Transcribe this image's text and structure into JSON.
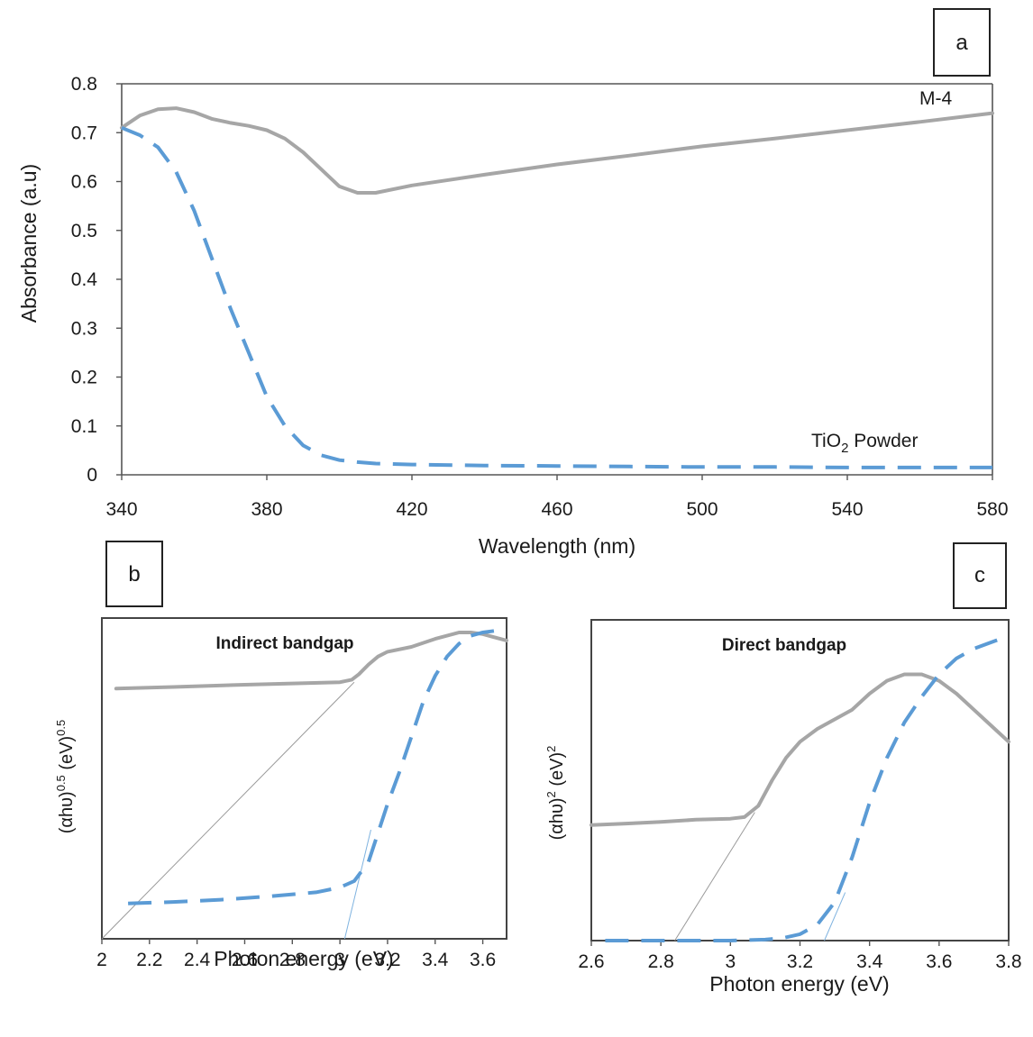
{
  "chart_data": [
    {
      "id": "a",
      "type": "line",
      "badge": "a",
      "xlabel": "Wavelength (nm)",
      "ylabel": "Absorbance (a.u)",
      "xlim": [
        340,
        580
      ],
      "ylim": [
        0,
        0.8
      ],
      "xticks": [
        "340",
        "380",
        "420",
        "460",
        "500",
        "540",
        "580"
      ],
      "yticks": [
        "0",
        "0.1",
        "0.2",
        "0.3",
        "0.4",
        "0.5",
        "0.6",
        "0.7",
        "0.8"
      ],
      "series_labels": {
        "m4": "M-4",
        "tio2_main": "TiO",
        "tio2_sub": "2",
        "tio2_rest": " Powder"
      },
      "series": [
        {
          "name": "M-4",
          "style": "solid",
          "color": "#a6a6a6",
          "x": [
            340,
            345,
            350,
            355,
            360,
            365,
            370,
            375,
            380,
            385,
            390,
            395,
            400,
            405,
            410,
            420,
            440,
            460,
            480,
            500,
            520,
            540,
            560,
            580
          ],
          "y": [
            0.71,
            0.735,
            0.748,
            0.75,
            0.742,
            0.728,
            0.72,
            0.714,
            0.705,
            0.688,
            0.66,
            0.625,
            0.59,
            0.577,
            0.577,
            0.592,
            0.614,
            0.635,
            0.653,
            0.672,
            0.688,
            0.705,
            0.722,
            0.74
          ]
        },
        {
          "name": "TiO2 Powder",
          "style": "dashed",
          "color": "#5b9bd5",
          "x": [
            340,
            345,
            350,
            355,
            360,
            365,
            370,
            375,
            380,
            385,
            390,
            395,
            400,
            405,
            410,
            420,
            440,
            460,
            480,
            500,
            520,
            540,
            560,
            580
          ],
          "y": [
            0.71,
            0.695,
            0.67,
            0.62,
            0.54,
            0.44,
            0.34,
            0.25,
            0.16,
            0.1,
            0.06,
            0.04,
            0.03,
            0.026,
            0.023,
            0.021,
            0.019,
            0.018,
            0.017,
            0.016,
            0.016,
            0.015,
            0.015,
            0.015
          ]
        }
      ]
    },
    {
      "id": "b",
      "type": "line",
      "badge": "b",
      "title": "Indirect bandgap",
      "xlabel": "Photon energy (eV)",
      "ylabel_main": "(αhυ)",
      "ylabel_sup1": "0.5",
      "ylabel_mid": " (eV)",
      "ylabel_sup2": "0.5",
      "xlim": [
        2,
        3.7
      ],
      "ylim": [
        0,
        1
      ],
      "xticks": [
        "2",
        "2.2",
        "2.4",
        "2.6",
        "2.8",
        "3",
        "3.2",
        "3.4",
        "3.6"
      ],
      "xtick_values": [
        2,
        2.2,
        2.4,
        2.6,
        2.8,
        3,
        3.2,
        3.4,
        3.6
      ],
      "series": [
        {
          "name": "M-4",
          "style": "solid",
          "color": "#a6a6a6",
          "x": [
            2.06,
            2.3,
            2.6,
            2.8,
            3.0,
            3.05,
            3.08,
            3.12,
            3.16,
            3.2,
            3.3,
            3.4,
            3.5,
            3.55,
            3.6,
            3.65,
            3.7
          ],
          "y": [
            0.78,
            0.785,
            0.792,
            0.796,
            0.8,
            0.808,
            0.825,
            0.855,
            0.88,
            0.895,
            0.91,
            0.935,
            0.955,
            0.955,
            0.95,
            0.94,
            0.93
          ]
        },
        {
          "name": "TiO2 Powder",
          "style": "dashed",
          "color": "#5b9bd5",
          "x": [
            2.11,
            2.3,
            2.5,
            2.7,
            2.9,
            3.0,
            3.06,
            3.12,
            3.16,
            3.2,
            3.25,
            3.3,
            3.35,
            3.4,
            3.45,
            3.5,
            3.55,
            3.6,
            3.65,
            3.7
          ],
          "y": [
            0.11,
            0.115,
            0.122,
            0.132,
            0.145,
            0.16,
            0.18,
            0.24,
            0.33,
            0.42,
            0.52,
            0.63,
            0.74,
            0.82,
            0.88,
            0.92,
            0.945,
            0.955,
            0.96,
            0.96
          ]
        }
      ],
      "fit_lines": [
        {
          "series": "M-4",
          "x": [
            2.0,
            3.06
          ],
          "y": [
            0.0,
            0.8
          ]
        },
        {
          "series": "TiO2 Powder",
          "x": [
            3.02,
            3.13
          ],
          "y": [
            0.0,
            0.34
          ]
        }
      ]
    },
    {
      "id": "c",
      "type": "line",
      "badge": "c",
      "title": "Direct bandgap",
      "xlabel": "Photon energy (eV)",
      "ylabel_main": "(αhυ)",
      "ylabel_sup1": "2",
      "ylabel_mid": " (eV)",
      "ylabel_sup2": "2",
      "xlim": [
        2.6,
        3.8
      ],
      "ylim": [
        0,
        1
      ],
      "xticks": [
        "2.6",
        "2.8",
        "3",
        "3.2",
        "3.4",
        "3.6",
        "3.8"
      ],
      "xtick_values": [
        2.6,
        2.8,
        3.0,
        3.2,
        3.4,
        3.6,
        3.8
      ],
      "series": [
        {
          "name": "M-4",
          "style": "solid",
          "color": "#a6a6a6",
          "x": [
            2.6,
            2.7,
            2.8,
            2.9,
            3.0,
            3.04,
            3.08,
            3.12,
            3.16,
            3.2,
            3.25,
            3.3,
            3.35,
            3.4,
            3.45,
            3.5,
            3.55,
            3.6,
            3.65,
            3.7,
            3.75,
            3.8
          ],
          "y": [
            0.36,
            0.365,
            0.37,
            0.377,
            0.38,
            0.385,
            0.42,
            0.5,
            0.57,
            0.62,
            0.66,
            0.69,
            0.72,
            0.77,
            0.81,
            0.83,
            0.83,
            0.81,
            0.77,
            0.72,
            0.67,
            0.62
          ]
        },
        {
          "name": "TiO2 Powder",
          "style": "dashed",
          "color": "#5b9bd5",
          "x": [
            2.64,
            2.8,
            3.0,
            3.1,
            3.15,
            3.2,
            3.25,
            3.3,
            3.35,
            3.4,
            3.45,
            3.5,
            3.55,
            3.6,
            3.65,
            3.7,
            3.75,
            3.8
          ],
          "y": [
            0.0,
            0.0,
            0.0,
            0.003,
            0.008,
            0.02,
            0.05,
            0.12,
            0.26,
            0.43,
            0.57,
            0.68,
            0.76,
            0.83,
            0.88,
            0.91,
            0.93,
            0.95
          ]
        }
      ],
      "fit_lines": [
        {
          "series": "M-4",
          "x": [
            2.84,
            3.07
          ],
          "y": [
            0.0,
            0.4
          ]
        },
        {
          "series": "TiO2 Powder",
          "x": [
            3.27,
            3.33
          ],
          "y": [
            0.0,
            0.15
          ]
        }
      ]
    }
  ]
}
